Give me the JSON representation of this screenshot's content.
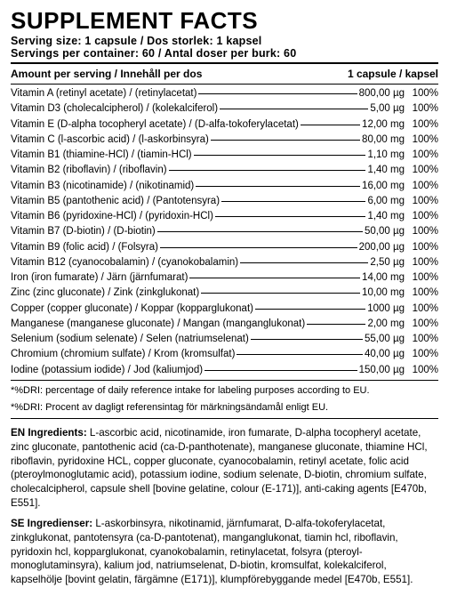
{
  "title": "SUPPLEMENT FACTS",
  "serving_size": "Serving size: 1 capsule / Dos storlek: 1 kapsel",
  "servings_per": "Servings per container: 60 / Antal doser per burk: 60",
  "header_left": "Amount per serving  / Innehåll per dos",
  "header_right": "1 capsule / kapsel",
  "rows": [
    {
      "name": "Vitamin A (retinyl acetate) / (retinylacetat)",
      "amount": "800,00 µg",
      "pct": "100%"
    },
    {
      "name": "Vitamin D3 (cholecalcipherol) / (kolekalciferol)",
      "amount": "5,00 µg",
      "pct": "100%"
    },
    {
      "name": "Vitamin E (D-alpha tocopheryl acetate) / (D-alfa-tokoferylacetat)",
      "amount": "12,00 mg",
      "pct": "100%"
    },
    {
      "name": "Vitamin C (l-ascorbic acid) / (l-askorbinsyra)",
      "amount": "80,00 mg",
      "pct": "100%"
    },
    {
      "name": "Vitamin B1 (thiamine-HCl) / (tiamin-HCl)",
      "amount": "1,10 mg",
      "pct": "100%"
    },
    {
      "name": "Vitamin B2 (riboflavin) / (riboflavin)",
      "amount": "1,40 mg",
      "pct": "100%"
    },
    {
      "name": "Vitamin B3 (nicotinamide) / (nikotinamid)",
      "amount": "16,00 mg",
      "pct": "100%"
    },
    {
      "name": "Vitamin B5 (pantothenic acid) / (Pantotensyra)",
      "amount": "6,00 mg",
      "pct": "100%"
    },
    {
      "name": "Vitamin B6 (pyridoxine-HCl) / (pyridoxin-HCl)",
      "amount": "1,40 mg",
      "pct": "100%"
    },
    {
      "name": "Vitamin B7 (D-biotin) / (D-biotin)",
      "amount": "50,00 µg",
      "pct": "100%"
    },
    {
      "name": "Vitamin B9 (folic acid) / (Folsyra)",
      "amount": "200,00 µg",
      "pct": "100%"
    },
    {
      "name": "Vitamin B12 (cyanocobalamin) / (cyanokobalamin)",
      "amount": "2,50 µg",
      "pct": "100%"
    },
    {
      "name": "Iron (iron fumarate) / Järn (järnfumarat)",
      "amount": "14,00 mg",
      "pct": "100%"
    },
    {
      "name": "Zinc (zinc gluconate) / Zink (zinkglukonat)",
      "amount": "10,00 mg",
      "pct": "100%"
    },
    {
      "name": "Copper (copper gluconate) / Koppar (kopparglukonat)",
      "amount": "1000 µg",
      "pct": "100%"
    },
    {
      "name": "Manganese (manganese gluconate) / Mangan (manganglukonat)",
      "amount": "2,00 mg",
      "pct": "100%"
    },
    {
      "name": "Selenium (sodium selenate) / Selen (natriumselenat)",
      "amount": "55,00 µg",
      "pct": "100%"
    },
    {
      "name": "Chromium (chromium sulfate) / Krom (kromsulfat)",
      "amount": "40,00 µg",
      "pct": "100%"
    },
    {
      "name": "Iodine (potassium iodide) / Jod (kaliumjod)",
      "amount": "150,00 µg",
      "pct": "100%"
    }
  ],
  "dri_en": "*%DRI: percentage of daily reference intake for labeling purposes according to EU.",
  "dri_se": "*%DRI: Procent av dagligt referensintag för märkningsändamål enligt EU.",
  "ingred_en_lead": "EN Ingredients:",
  "ingred_en_body": " L-ascorbic acid, nicotinamide, iron fumarate, D-alpha tocopheryl acetate, zinc gluconate, pantothenic acid (ca-D-panthotenate), manganese gluconate, thiamine HCl, riboflavin, pyridoxine HCL, copper gluconate, cyanocobalamin, retinyl acetate, folic acid (pteroylmonoglutamic acid), potassium iodine, sodium selenate, D-biotin, chromium sulfate, cholecalcipherol, capsule shell [bovine gelatine, colour (E-171)], anti-caking agents [E470b, E551].",
  "ingred_se_lead": "SE Ingredienser:",
  "ingred_se_body": " L-askorbinsyra, nikotinamid, järnfumarat, D-alfa-tokoferylacetat, zinkglukonat, pantotensyra (ca-D-pantotenat), manganglukonat, tiamin hcl, riboflavin, pyridoxin hcl, kopparglukonat, cyanokobalamin, retinylacetat, folsyra (pteroyl-monoglutaminsyra), kalium jod, natriumselenat, D-biotin, kromsulfat, kolekalciferol, kapselhölje [bovint gelatin, färgämne (E171)], klumpförebyggande medel [E470b, E551]."
}
